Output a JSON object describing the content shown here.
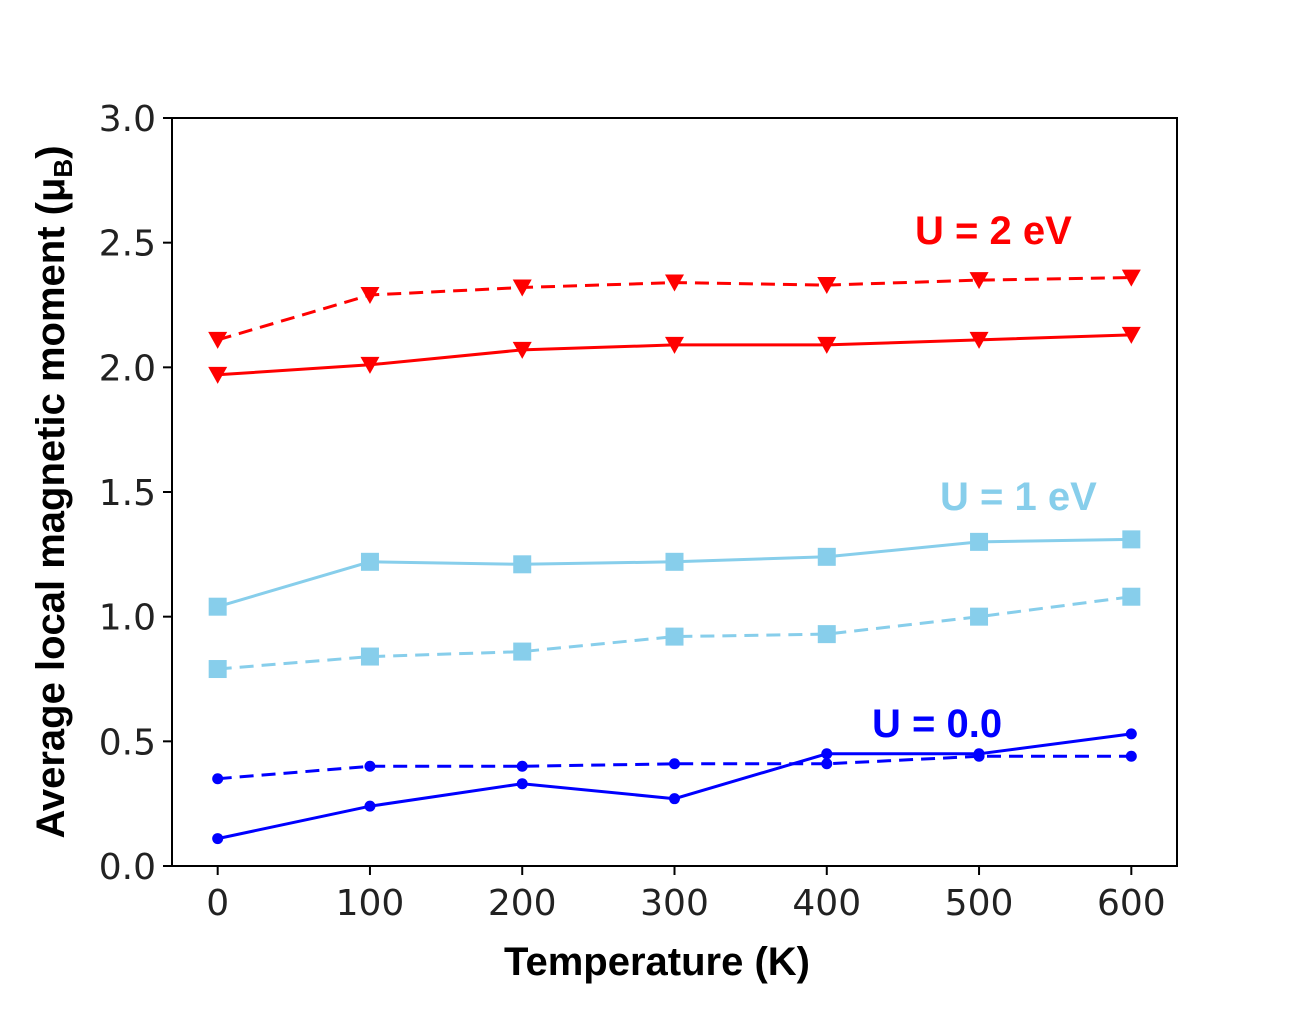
{
  "chart_data": {
    "type": "line",
    "xlabel": "Temperature (K)",
    "ylabel": "Average local magnetic moment (μ",
    "ylabel_sub": "B",
    "ylabel_close": ")",
    "xlim": [
      -30,
      630
    ],
    "ylim": [
      0.0,
      3.0
    ],
    "xticks": [
      0,
      100,
      200,
      300,
      400,
      500,
      600
    ],
    "xtick_labels": [
      "0",
      "100",
      "200",
      "300",
      "400",
      "500",
      "600"
    ],
    "yticks": [
      0.0,
      0.5,
      1.0,
      1.5,
      2.0,
      2.5,
      3.0
    ],
    "ytick_labels": [
      "0.0",
      "0.5",
      "1.0",
      "1.5",
      "2.0",
      "2.5",
      "3.0"
    ],
    "grid": false,
    "x": [
      0,
      100,
      200,
      300,
      400,
      500,
      600
    ],
    "series": [
      {
        "group": "U = 2 eV",
        "style": "dashed",
        "marker": "triangle-down",
        "color": "#ff0000",
        "values": [
          2.11,
          2.29,
          2.32,
          2.34,
          2.33,
          2.35,
          2.36
        ]
      },
      {
        "group": "U = 2 eV",
        "style": "solid",
        "marker": "triangle-down",
        "color": "#ff0000",
        "values": [
          1.97,
          2.01,
          2.07,
          2.09,
          2.09,
          2.11,
          2.13
        ]
      },
      {
        "group": "U = 1 eV",
        "style": "solid",
        "marker": "square",
        "color": "#87ceeb",
        "values": [
          1.04,
          1.22,
          1.21,
          1.22,
          1.24,
          1.3,
          1.31
        ]
      },
      {
        "group": "U = 1 eV",
        "style": "dashed",
        "marker": "square",
        "color": "#87ceeb",
        "values": [
          0.79,
          0.84,
          0.86,
          0.92,
          0.93,
          1.0,
          1.08
        ]
      },
      {
        "group": "U = 0.0",
        "style": "dashed",
        "marker": "circle",
        "color": "#0000ff",
        "values": [
          0.35,
          0.4,
          0.4,
          0.41,
          0.41,
          0.44,
          0.44
        ]
      },
      {
        "group": "U = 0.0",
        "style": "solid",
        "marker": "circle",
        "color": "#0000ff",
        "values": [
          0.11,
          0.24,
          0.33,
          0.27,
          0.45,
          0.45,
          0.53
        ]
      }
    ],
    "annotations": [
      {
        "text": "U = 2 eV",
        "color": "#ff0000"
      },
      {
        "text": "U = 1 eV",
        "color": "#87ceeb"
      },
      {
        "text": "U = 0.0",
        "color": "#0000ff"
      }
    ]
  }
}
